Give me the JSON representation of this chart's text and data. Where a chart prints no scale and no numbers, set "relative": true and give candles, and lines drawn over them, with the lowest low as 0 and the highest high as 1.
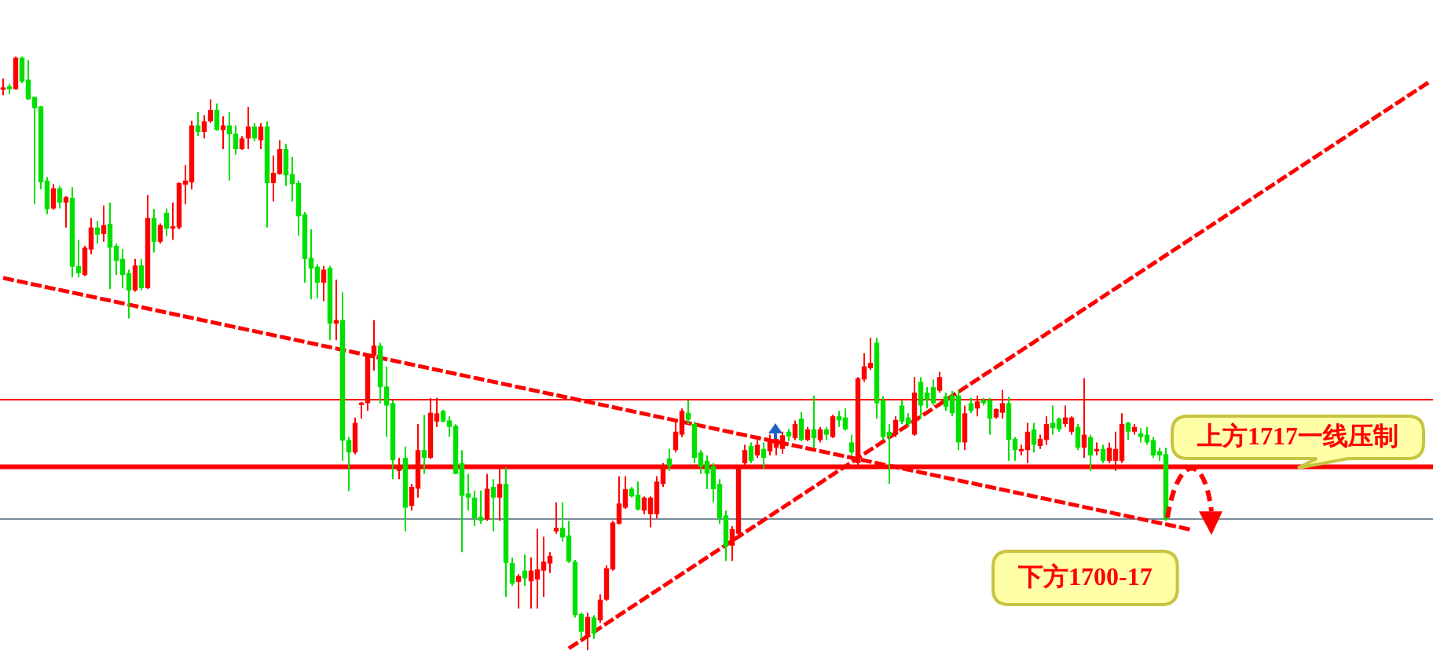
{
  "chart_data": {
    "type": "candlestick",
    "relative": true,
    "categories": [
      null,
      null,
      null,
      null,
      null,
      null,
      null,
      null,
      null,
      null,
      null,
      null,
      null,
      null,
      null,
      null,
      null,
      null,
      null,
      null,
      null,
      null,
      null,
      null,
      null,
      null,
      null,
      null,
      null,
      null,
      null,
      null,
      null,
      null,
      null,
      null,
      null,
      null,
      null,
      null,
      null,
      null,
      null,
      null,
      null,
      null,
      null,
      null,
      null,
      null,
      null,
      null,
      null,
      null,
      null,
      null,
      null,
      null,
      null,
      null,
      null,
      null,
      null,
      null,
      null,
      null,
      null,
      null,
      null,
      null,
      null,
      null,
      null,
      null,
      null,
      null,
      null,
      null,
      null,
      null,
      null,
      null,
      null,
      null,
      null,
      null,
      null,
      null,
      null,
      null,
      null,
      null,
      null,
      null,
      null,
      null,
      null,
      null,
      null,
      null,
      null,
      null,
      null,
      null,
      null,
      null,
      null,
      null,
      null,
      null,
      null,
      null,
      null,
      null,
      null,
      null,
      null,
      null,
      null,
      null,
      null,
      null,
      null,
      null,
      null,
      null,
      null,
      null,
      null,
      null,
      null,
      null,
      null,
      null,
      null,
      null,
      null,
      null,
      null,
      null,
      null,
      null,
      null,
      null,
      null,
      null,
      null,
      null,
      null,
      null,
      null,
      null,
      null,
      null,
      null,
      null,
      null,
      null,
      null,
      null,
      null,
      null,
      null,
      null,
      null,
      null,
      null,
      null,
      null,
      null,
      null,
      null,
      null,
      null,
      null,
      null,
      null,
      null,
      null,
      null,
      null,
      null,
      null,
      null,
      null,
      null,
      null,
      null,
      null,
      null,
      null,
      null,
      null,
      null,
      null,
      null,
      null,
      null,
      null,
      null,
      null,
      null,
      null,
      null,
      null,
      null,
      null,
      null,
      null,
      null,
      null,
      null,
      null,
      null,
      null,
      null,
      null,
      null,
      null,
      null,
      null,
      null,
      null,
      null,
      null,
      null,
      null,
      null
    ],
    "ohlc": [
      [
        0.944,
        0.963,
        0.935,
        0.948
      ],
      [
        0.95,
        0.954,
        0.937,
        0.945
      ],
      [
        0.945,
        1,
        0.944,
        0.998
      ],
      [
        0.998,
        1,
        0.955,
        0.958
      ],
      [
        0.961,
        0.994,
        0.927,
        0.928
      ],
      [
        0.932,
        0.933,
        0.751,
        0.913
      ],
      [
        0.916,
        0.917,
        0.776,
        0.788
      ],
      [
        0.791,
        0.797,
        0.734,
        0.743
      ],
      [
        0.744,
        0.785,
        0.742,
        0.778
      ],
      [
        0.778,
        0.782,
        0.744,
        0.754
      ],
      [
        0.754,
        0.765,
        0.712,
        0.763
      ],
      [
        0.762,
        0.78,
        0.628,
        0.646
      ],
      [
        0.647,
        0.691,
        0.628,
        0.635
      ],
      [
        0.632,
        0.681,
        0.63,
        0.678
      ],
      [
        0.675,
        0.728,
        0.667,
        0.712
      ],
      [
        0.712,
        0.723,
        0.685,
        0.7
      ],
      [
        0.701,
        0.749,
        0.688,
        0.716
      ],
      [
        0.718,
        0.754,
        0.608,
        0.678
      ],
      [
        0.681,
        0.685,
        0.632,
        0.656
      ],
      [
        0.659,
        0.676,
        0.61,
        0.632
      ],
      [
        0.635,
        0.641,
        0.559,
        0.606
      ],
      [
        0.606,
        0.659,
        0.604,
        0.648
      ],
      [
        0.648,
        0.659,
        0.606,
        0.61
      ],
      [
        0.61,
        0.767,
        0.608,
        0.728
      ],
      [
        0.728,
        0.743,
        0.67,
        0.688
      ],
      [
        0.688,
        0.719,
        0.685,
        0.716
      ],
      [
        0.737,
        0.744,
        0.697,
        0.71
      ],
      [
        0.71,
        0.754,
        0.691,
        0.714
      ],
      [
        0.712,
        0.788,
        0.709,
        0.787
      ],
      [
        0.784,
        0.817,
        0.751,
        0.791
      ],
      [
        0.788,
        0.892,
        0.776,
        0.884
      ],
      [
        0.884,
        0.906,
        0.866,
        0.873
      ],
      [
        0.873,
        0.901,
        0.862,
        0.891
      ],
      [
        0.891,
        0.928,
        0.888,
        0.91
      ],
      [
        0.91,
        0.921,
        0.875,
        0.876
      ],
      [
        0.876,
        0.899,
        0.844,
        0.884
      ],
      [
        0.884,
        0.906,
        0.791,
        0.869
      ],
      [
        0.87,
        0.884,
        0.835,
        0.844
      ],
      [
        0.844,
        0.866,
        0.843,
        0.862
      ],
      [
        0.862,
        0.915,
        0.844,
        0.882
      ],
      [
        0.882,
        0.888,
        0.857,
        0.862
      ],
      [
        0.859,
        0.888,
        0.844,
        0.882
      ],
      [
        0.882,
        0.891,
        0.712,
        0.787
      ],
      [
        0.787,
        0.833,
        0.756,
        0.804
      ],
      [
        0.802,
        0.859,
        0.801,
        0.844
      ],
      [
        0.844,
        0.853,
        0.782,
        0.8
      ],
      [
        0.802,
        0.831,
        0.756,
        0.785
      ],
      [
        0.787,
        0.791,
        0.698,
        0.731
      ],
      [
        0.734,
        0.738,
        0.619,
        0.659
      ],
      [
        0.661,
        0.709,
        0.591,
        0.643
      ],
      [
        0.646,
        0.65,
        0.593,
        0.619
      ],
      [
        0.619,
        0.647,
        0.588,
        0.641
      ],
      [
        0.644,
        0.647,
        0.522,
        0.55
      ],
      [
        0.55,
        0.624,
        0.522,
        0.556
      ],
      [
        0.556,
        0.603,
        0.319,
        0.353
      ],
      [
        0.354,
        0.359,
        0.268,
        0.333
      ],
      [
        0.333,
        0.392,
        0.33,
        0.383
      ],
      [
        0.413,
        0.418,
        0.39,
        0.417
      ],
      [
        0.416,
        0.5,
        0.403,
        0.497
      ],
      [
        0.496,
        0.556,
        0.471,
        0.513
      ],
      [
        0.513,
        0.518,
        0.416,
        0.443
      ],
      [
        0.444,
        0.478,
        0.359,
        0.412
      ],
      [
        0.416,
        0.421,
        0.288,
        0.32
      ],
      [
        0.302,
        0.324,
        0.288,
        0.31
      ],
      [
        0.324,
        0.343,
        0.2,
        0.24
      ],
      [
        0.243,
        0.28,
        0.235,
        0.275
      ],
      [
        0.272,
        0.381,
        0.257,
        0.337
      ],
      [
        0.337,
        0.396,
        0.297,
        0.324
      ],
      [
        0.324,
        0.425,
        0.322,
        0.4
      ],
      [
        0.385,
        0.425,
        0.376,
        0.399
      ],
      [
        0.403,
        0.405,
        0.384,
        0.385
      ],
      [
        0.387,
        0.394,
        0.359,
        0.376
      ],
      [
        0.378,
        0.381,
        0.296,
        0.297
      ],
      [
        0.315,
        0.337,
        0.165,
        0.26
      ],
      [
        0.264,
        0.297,
        0.235,
        0.257
      ],
      [
        0.257,
        0.269,
        0.209,
        0.222
      ],
      [
        0.225,
        0.269,
        0.213,
        0.218
      ],
      [
        0.22,
        0.297,
        0.218,
        0.272
      ],
      [
        0.275,
        0.288,
        0.2,
        0.257
      ],
      [
        0.257,
        0.308,
        0.218,
        0.28
      ],
      [
        0.28,
        0.308,
        0.09,
        0.147
      ],
      [
        0.147,
        0.156,
        0.108,
        0.112
      ],
      [
        0.115,
        0.128,
        0.07,
        0.125
      ],
      [
        0.134,
        0.161,
        0.108,
        0.121
      ],
      [
        0.116,
        0.156,
        0.07,
        0.134
      ],
      [
        0.119,
        0.204,
        0.07,
        0.136
      ],
      [
        0.134,
        0.191,
        0.09,
        0.149
      ],
      [
        0.146,
        0.165,
        0.13,
        0.159
      ],
      [
        0.2,
        0.249,
        0.196,
        0.206
      ],
      [
        0.206,
        0.249,
        0.183,
        0.19
      ],
      [
        0.193,
        0.218,
        0.147,
        0.149
      ],
      [
        0.149,
        0.152,
        0.055,
        0.059
      ],
      [
        0.061,
        0.063,
        0.019,
        0.031
      ],
      [
        0.026,
        0.063,
        0,
        0.056
      ],
      [
        0.055,
        0.059,
        0.019,
        0.028
      ],
      [
        0.05,
        0.094,
        0.046,
        0.085
      ],
      [
        0.085,
        0.143,
        0.083,
        0.138
      ],
      [
        0.136,
        0.218,
        0.134,
        0.215
      ],
      [
        0.213,
        0.293,
        0.212,
        0.247
      ],
      [
        0.24,
        0.293,
        0.238,
        0.271
      ],
      [
        0.272,
        0.275,
        0.257,
        0.259
      ],
      [
        0.262,
        0.284,
        0.235,
        0.237
      ],
      [
        0.235,
        0.259,
        0.229,
        0.257
      ],
      [
        0.229,
        0.259,
        0.207,
        0.257
      ],
      [
        0.229,
        0.293,
        0.222,
        0.284
      ],
      [
        0.28,
        0.315,
        0.275,
        0.312
      ],
      [
        0.323,
        0.339,
        0.302,
        0.31
      ],
      [
        0.337,
        0.39,
        0.333,
        0.368
      ],
      [
        0.363,
        0.407,
        0.359,
        0.403
      ],
      [
        0.4,
        0.421,
        0.381,
        0.388
      ],
      [
        0.381,
        0.385,
        0.315,
        0.324
      ],
      [
        0.333,
        0.337,
        0.297,
        0.309
      ],
      [
        0.319,
        0.328,
        0.271,
        0.297
      ],
      [
        0.31,
        0.315,
        0.249,
        0.271
      ],
      [
        0.28,
        0.288,
        0.213,
        0.222
      ],
      [
        0.227,
        0.235,
        0.15,
        0.174
      ],
      [
        0.176,
        0.209,
        0.15,
        0.204
      ],
      [
        0.196,
        0.309,
        0.191,
        0.306
      ],
      [
        0.315,
        0.346,
        0.306,
        0.337
      ],
      [
        0.344,
        0.35,
        0.315,
        0.319
      ],
      [
        0.328,
        0.354,
        0.324,
        0.346
      ],
      [
        0.339,
        0.35,
        0.306,
        0.324
      ],
      [
        0.335,
        0.363,
        0.328,
        0.353
      ],
      [
        0.341,
        0.363,
        0.328,
        0.356
      ],
      [
        0.339,
        0.368,
        0.331,
        0.362
      ],
      [
        0.368,
        0.373,
        0.352,
        0.36
      ],
      [
        0.357,
        0.387,
        0.354,
        0.381
      ],
      [
        0.39,
        0.401,
        0.352,
        0.354
      ],
      [
        0.354,
        0.376,
        0.352,
        0.372
      ],
      [
        0.372,
        0.429,
        0.341,
        0.357
      ],
      [
        0.354,
        0.376,
        0.35,
        0.372
      ],
      [
        0.372,
        0.376,
        0.354,
        0.363
      ],
      [
        0.359,
        0.396,
        0.357,
        0.394
      ],
      [
        0.394,
        0.403,
        0.376,
        0.387
      ],
      [
        0.392,
        0.407,
        0.37,
        0.372
      ],
      [
        0.35,
        0.363,
        0.328,
        0.333
      ],
      [
        0.315,
        0.46,
        0.31,
        0.458
      ],
      [
        0.456,
        0.5,
        0.452,
        0.478
      ],
      [
        0.475,
        0.526,
        0.472,
        0.484
      ],
      [
        0.518,
        0.526,
        0.39,
        0.416
      ],
      [
        0.421,
        0.428,
        0.354,
        0.359
      ],
      [
        0.368,
        0.381,
        0.28,
        0.361
      ],
      [
        0.363,
        0.394,
        0.359,
        0.388
      ],
      [
        0.412,
        0.421,
        0.381,
        0.385
      ],
      [
        0.392,
        0.399,
        0.376,
        0.381
      ],
      [
        0.363,
        0.46,
        0.361,
        0.434
      ],
      [
        0.452,
        0.46,
        0.39,
        0.412
      ],
      [
        0.434,
        0.443,
        0.407,
        0.422
      ],
      [
        0.443,
        0.456,
        0.412,
        0.416
      ],
      [
        0.437,
        0.469,
        0.434,
        0.46
      ],
      [
        0.428,
        0.434,
        0.403,
        0.41
      ],
      [
        0.429,
        0.437,
        0.394,
        0.399
      ],
      [
        0.429,
        0.438,
        0.337,
        0.35
      ],
      [
        0.35,
        0.412,
        0.337,
        0.399
      ],
      [
        0.416,
        0.425,
        0.399,
        0.403
      ],
      [
        0.407,
        0.429,
        0.394,
        0.419
      ],
      [
        0.421,
        0.425,
        0.412,
        0.416
      ],
      [
        0.421,
        0.425,
        0.363,
        0.39
      ],
      [
        0.392,
        0.407,
        0.39,
        0.406
      ],
      [
        0.4,
        0.438,
        0.39,
        0.416
      ],
      [
        0.416,
        0.427,
        0.319,
        0.354
      ],
      [
        0.356,
        0.359,
        0.319,
        0.337
      ],
      [
        0.335,
        0.346,
        0.328,
        0.339
      ],
      [
        0.337,
        0.383,
        0.315,
        0.368
      ],
      [
        0.372,
        0.383,
        0.333,
        0.346
      ],
      [
        0.344,
        0.363,
        0.339,
        0.356
      ],
      [
        0.354,
        0.394,
        0.346,
        0.381
      ],
      [
        0.383,
        0.412,
        0.363,
        0.374
      ],
      [
        0.39,
        0.392,
        0.368,
        0.372
      ],
      [
        0.381,
        0.412,
        0.376,
        0.392
      ],
      [
        0.368,
        0.394,
        0.363,
        0.392
      ],
      [
        0.376,
        0.381,
        0.337,
        0.341
      ],
      [
        0.341,
        0.458,
        0.324,
        0.363
      ],
      [
        0.359,
        0.363,
        0.302,
        0.328
      ],
      [
        0.335,
        0.35,
        0.328,
        0.339
      ],
      [
        0.339,
        0.346,
        0.315,
        0.319
      ],
      [
        0.319,
        0.35,
        0.315,
        0.341
      ],
      [
        0.319,
        0.368,
        0.302,
        0.339
      ],
      [
        0.319,
        0.399,
        0.315,
        0.381
      ],
      [
        0.383,
        0.385,
        0.354,
        0.368
      ],
      [
        0.368,
        0.381,
        0.363,
        0.376
      ],
      [
        0.365,
        0.374,
        0.35,
        0.359
      ],
      [
        0.363,
        0.376,
        0.346,
        0.35
      ],
      [
        0.354,
        0.359,
        0.324,
        0.328
      ],
      [
        0.335,
        0.341,
        0.319,
        0.328
      ],
      [
        0.33,
        0.341,
        0.218,
        0.22
      ],
      null,
      null,
      null,
      null,
      null,
      null,
      null,
      null,
      null,
      null,
      null,
      null,
      null,
      null,
      null,
      null,
      null,
      null,
      null,
      null,
      null,
      null,
      null,
      null,
      null,
      null,
      null,
      null,
      null,
      null,
      null,
      null,
      null,
      null,
      null,
      null,
      null,
      null,
      null,
      null,
      null,
      null
    ],
    "colors": [
      "#ff0000",
      "#00e000",
      "#ff0000",
      "#00e000",
      "#00e000",
      "#00e000",
      "#00e000",
      "#00e000",
      "#ff0000",
      "#00e000",
      "#ff0000",
      "#00e000",
      "#00e000",
      "#ff0000",
      "#ff0000",
      "#00e000",
      "#ff0000",
      "#00e000",
      "#00e000",
      "#00e000",
      "#00e000",
      "#ff0000",
      "#00e000",
      "#ff0000",
      "#00e000",
      "#ff0000",
      "#00e000",
      "#ff0000",
      "#ff0000",
      "#ff0000",
      "#ff0000",
      "#00e000",
      "#ff0000",
      "#ff0000",
      "#00e000",
      "#ff0000",
      "#00e000",
      "#00e000",
      "#ff0000",
      "#ff0000",
      "#00e000",
      "#ff0000",
      "#00e000",
      "#ff0000",
      "#ff0000",
      "#00e000",
      "#00e000",
      "#00e000",
      "#00e000",
      "#00e000",
      "#00e000",
      "#ff0000",
      "#00e000",
      "#ff0000",
      "#00e000",
      "#00e000",
      "#ff0000",
      "#ff0000",
      "#ff0000",
      "#ff0000",
      "#00e000",
      "#00e000",
      "#00e000",
      "#ff0000",
      "#00e000",
      "#ff0000",
      "#ff0000",
      "#00e000",
      "#ff0000",
      "#ff0000",
      "#00e000",
      "#00e000",
      "#00e000",
      "#00e000",
      "#00e000",
      "#00e000",
      "#00e000",
      "#ff0000",
      "#00e000",
      "#ff0000",
      "#00e000",
      "#00e000",
      "#ff0000",
      "#00e000",
      "#ff0000",
      "#ff0000",
      "#ff0000",
      "#ff0000",
      "#ff0000",
      "#00e000",
      "#00e000",
      "#00e000",
      "#00e000",
      "#ff0000",
      "#00e000",
      "#ff0000",
      "#ff0000",
      "#ff0000",
      "#ff0000",
      "#ff0000",
      "#00e000",
      "#00e000",
      "#ff0000",
      "#ff0000",
      "#ff0000",
      "#ff0000",
      "#00e000",
      "#ff0000",
      "#ff0000",
      "#00e000",
      "#00e000",
      "#00e000",
      "#00e000",
      "#00e000",
      "#00e000",
      "#00e000",
      "#ff0000",
      "#ff0000",
      "#ff0000",
      "#00e000",
      "#ff0000",
      "#00e000",
      "#ff0000",
      "#ff0000",
      "#ff0000",
      "#00e000",
      "#ff0000",
      "#00e000",
      "#ff0000",
      "#00e000",
      "#ff0000",
      "#00e000",
      "#ff0000",
      "#00e000",
      "#00e000",
      "#00e000",
      "#ff0000",
      "#ff0000",
      "#ff0000",
      "#00e000",
      "#00e000",
      "#00e000",
      "#ff0000",
      "#00e000",
      "#00e000",
      "#ff0000",
      "#00e000",
      "#00e000",
      "#00e000",
      "#ff0000",
      "#00e000",
      "#00e000",
      "#00e000",
      "#ff0000",
      "#00e000",
      "#ff0000",
      "#00e000",
      "#00e000",
      "#ff0000",
      "#ff0000",
      "#00e000",
      "#00e000",
      "#ff0000",
      "#ff0000",
      "#00e000",
      "#ff0000",
      "#ff0000",
      "#00e000",
      "#00e000",
      "#ff0000",
      "#ff0000",
      "#00e000",
      "#ff0000",
      "#00e000",
      "#ff0000",
      "#00e000",
      "#ff0000",
      "#ff0000",
      "#ff0000",
      "#00e000",
      "#ff0000",
      "#00e000",
      "#00e000",
      "#00e000",
      "#00e000",
      "#00e000",
      null,
      null,
      null,
      null,
      null,
      null,
      null,
      null,
      null,
      null,
      null,
      null,
      null,
      null,
      null,
      null,
      null,
      null,
      null,
      null,
      null,
      null,
      null,
      null,
      null,
      null,
      null,
      null,
      null,
      null,
      null,
      null,
      null,
      null,
      null,
      null,
      null,
      null,
      null,
      null,
      null,
      null
    ],
    "series": [
      {
        "type": "line",
        "color": "#ff0000",
        "line_style": "dashed",
        "values": [
          0.627,
          null,
          null,
          null,
          null,
          null,
          null,
          null,
          null,
          null,
          null,
          null,
          null,
          null,
          null,
          null,
          null,
          null,
          null,
          null,
          null,
          null,
          null,
          null,
          null,
          null,
          null,
          null,
          null,
          null,
          null,
          null,
          null,
          null,
          null,
          null,
          null,
          null,
          null,
          null,
          null,
          null,
          null,
          null,
          null,
          null,
          null,
          null,
          null,
          null,
          null,
          null,
          null,
          null,
          null,
          null,
          null,
          null,
          null,
          null,
          null,
          null,
          null,
          null,
          null,
          null,
          null,
          null,
          null,
          null,
          null,
          null,
          null,
          null,
          null,
          null,
          null,
          null,
          null,
          null,
          null,
          null,
          null,
          null,
          null,
          null,
          null,
          null,
          null,
          null,
          null,
          null,
          null,
          null,
          null,
          null,
          null,
          null,
          null,
          null,
          null,
          null,
          null,
          null,
          null,
          null,
          null,
          null,
          null,
          null,
          null,
          null,
          null,
          null,
          null,
          null,
          null,
          null,
          null,
          null,
          null,
          null,
          null,
          null,
          null,
          null,
          null,
          null,
          null,
          null,
          null,
          null,
          null,
          null,
          null,
          null,
          null,
          null,
          null,
          null,
          null,
          null,
          null,
          null,
          null,
          null,
          null,
          null,
          null,
          null,
          null,
          null,
          null,
          null,
          null,
          null,
          null,
          null,
          null,
          null,
          null,
          null,
          null,
          null,
          null,
          null,
          null,
          null,
          null,
          null,
          null,
          null,
          null,
          null,
          null,
          null,
          null,
          null,
          null,
          null,
          null,
          null,
          null,
          null,
          null,
          null,
          null,
          null,
          null,
          0.203,
          null,
          null,
          null,
          null,
          null,
          null,
          null,
          null,
          null,
          null,
          null,
          null,
          null,
          null,
          null,
          null,
          null,
          null,
          null,
          null,
          null,
          null,
          null,
          null,
          null,
          null,
          null,
          null,
          null,
          null,
          null,
          null,
          null,
          null,
          null,
          null,
          null,
          null
        ]
      },
      {
        "type": "line",
        "color": "#ff0000",
        "line_style": "dashed",
        "values": [
          null,
          null,
          null,
          null,
          null,
          null,
          null,
          null,
          null,
          null,
          null,
          null,
          null,
          null,
          null,
          null,
          null,
          null,
          null,
          null,
          null,
          null,
          null,
          null,
          null,
          null,
          null,
          null,
          null,
          null,
          null,
          null,
          null,
          null,
          null,
          null,
          null,
          null,
          null,
          null,
          null,
          null,
          null,
          null,
          null,
          null,
          null,
          null,
          null,
          null,
          null,
          null,
          null,
          null,
          null,
          null,
          null,
          null,
          null,
          null,
          null,
          null,
          null,
          null,
          null,
          null,
          null,
          null,
          null,
          null,
          null,
          null,
          null,
          null,
          null,
          null,
          null,
          null,
          null,
          null,
          null,
          null,
          null,
          null,
          null,
          null,
          null,
          null,
          null,
          null,
          0.003,
          null,
          null,
          null,
          null,
          null,
          null,
          null,
          null,
          null,
          null,
          null,
          null,
          null,
          null,
          null,
          null,
          null,
          null,
          null,
          null,
          null,
          null,
          null,
          null,
          null,
          null,
          null,
          null,
          null,
          null,
          null,
          null,
          null,
          null,
          null,
          null,
          null,
          null,
          null,
          null,
          null,
          null,
          null,
          null,
          null,
          null,
          null,
          null,
          null,
          null,
          null,
          null,
          null,
          null,
          null,
          null,
          null,
          null,
          null,
          null,
          null,
          null,
          null,
          null,
          null,
          null,
          null,
          null,
          null,
          null,
          null,
          null,
          null,
          null,
          null,
          null,
          null,
          null,
          null,
          null,
          null,
          null,
          null,
          null,
          null,
          null,
          null,
          null,
          null,
          null,
          null,
          null,
          null,
          null,
          null,
          null,
          null,
          null,
          null,
          null,
          null,
          null,
          null,
          null,
          null,
          null,
          null,
          null,
          null,
          null,
          null,
          null,
          null,
          null,
          null,
          null,
          null,
          null,
          null,
          null,
          null,
          null,
          null,
          null,
          null,
          null,
          null,
          null,
          null,
          null,
          null,
          null,
          null,
          null,
          null,
          null,
          0.958
        ]
      }
    ],
    "ref_lines": [
      {
        "axis": "y",
        "value": 0.422,
        "color": "#ff0000"
      },
      {
        "axis": "y",
        "value": 0.309,
        "color": "#ff0000"
      },
      {
        "axis": "y",
        "value": 0.221,
        "color": "#7a8c9c"
      }
    ],
    "annotations": [
      "上方1717一线压制",
      "下方1700-17"
    ]
  }
}
